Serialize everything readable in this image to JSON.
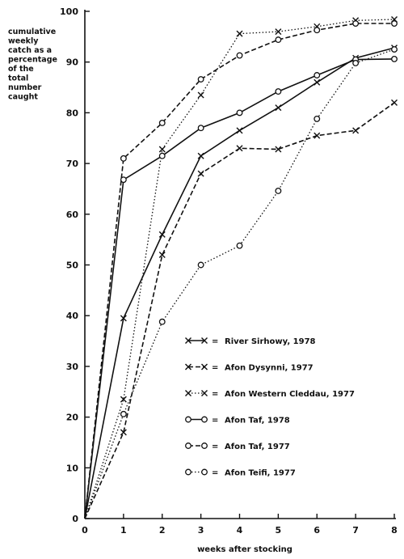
{
  "chart_data": {
    "type": "line",
    "xlabel": "weeks after stocking",
    "ylabel_lines": [
      "cumulative",
      "weekly",
      "catch as a",
      "percentage",
      "of the",
      "total",
      "number",
      "caught"
    ],
    "x_ticks": [
      "0",
      "1",
      "2",
      "3",
      "4",
      "5",
      "6",
      "7",
      "8"
    ],
    "y_ticks": [
      "0",
      "10",
      "20",
      "30",
      "40",
      "50",
      "60",
      "70",
      "80",
      "90",
      "100"
    ],
    "xlim": [
      0,
      8
    ],
    "ylim": [
      0,
      100
    ],
    "grid": false,
    "legend_position": "bottom-right",
    "legend_sep": "=",
    "series": [
      {
        "name": "River Sirhowy, 1978",
        "marker": "x",
        "line": "solid",
        "x": [
          0,
          1,
          2,
          3,
          4,
          5,
          6,
          7,
          8
        ],
        "y": [
          0,
          39.5,
          56,
          71.5,
          76.5,
          81,
          86,
          90.8,
          92.8
        ]
      },
      {
        "name": "Afon Dysynni, 1977",
        "marker": "x",
        "line": "dashed",
        "x": [
          0,
          1,
          2,
          3,
          4,
          5,
          6,
          7,
          8
        ],
        "y": [
          0,
          17,
          52,
          68,
          73,
          72.8,
          75.5,
          76.5,
          82
        ]
      },
      {
        "name": "Afon Western Cleddau, 1977",
        "marker": "x",
        "line": "dotted",
        "x": [
          0,
          1,
          2,
          3,
          4,
          5,
          6,
          7,
          8
        ],
        "y": [
          0,
          23.5,
          72.8,
          83.5,
          95.6,
          96,
          97,
          98.2,
          98.4
        ]
      },
      {
        "name": "Afon Taf, 1978",
        "marker": "o",
        "line": "solid",
        "x": [
          0,
          1,
          2,
          3,
          4,
          5,
          6,
          7,
          8
        ],
        "y": [
          0,
          66.8,
          71.5,
          77,
          80,
          84.2,
          87.4,
          90.5,
          90.6
        ]
      },
      {
        "name": "Afon Taf, 1977",
        "marker": "o",
        "line": "dashed",
        "x": [
          0,
          1,
          2,
          3,
          4,
          5,
          6,
          7,
          8
        ],
        "y": [
          0,
          71,
          78,
          86.6,
          91.3,
          94.4,
          96.3,
          97.6,
          97.6
        ]
      },
      {
        "name": "Afon Teifi, 1977",
        "marker": "o",
        "line": "dotted",
        "x": [
          0,
          1,
          2,
          3,
          4,
          5,
          6,
          7,
          8
        ],
        "y": [
          0,
          20.6,
          38.8,
          50,
          53.8,
          64.6,
          78.8,
          89.8,
          92.5
        ]
      }
    ]
  }
}
